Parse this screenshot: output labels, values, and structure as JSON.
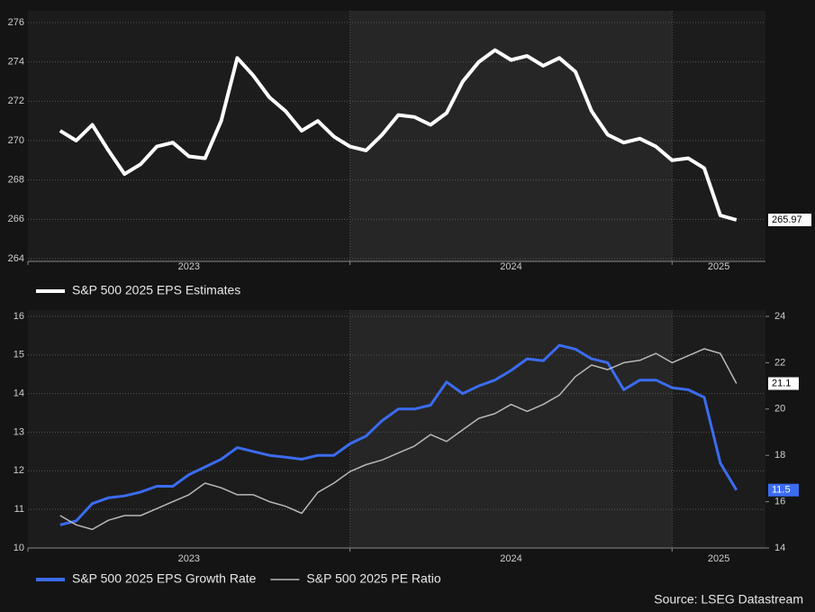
{
  "source": "Source: LSEG Datastream",
  "chart_data": [
    {
      "type": "line",
      "x": [
        2023.1,
        2023.15,
        2023.2,
        2023.25,
        2023.3,
        2023.35,
        2023.4,
        2023.45,
        2023.5,
        2023.55,
        2023.6,
        2023.65,
        2023.7,
        2023.75,
        2023.8,
        2023.85,
        2023.9,
        2023.95,
        2024.0,
        2024.05,
        2024.1,
        2024.15,
        2024.2,
        2024.25,
        2024.3,
        2024.35,
        2024.4,
        2024.45,
        2024.5,
        2024.55,
        2024.6,
        2024.65,
        2024.7,
        2024.75,
        2024.8,
        2024.85,
        2024.9,
        2024.95,
        2025.0,
        2025.05,
        2025.1,
        2025.15,
        2025.2
      ],
      "xlim": [
        2023,
        2025.29
      ],
      "xticks": [
        2023,
        2024,
        2025
      ],
      "ylim": [
        264,
        276
      ],
      "yticks": [
        264,
        266,
        268,
        270,
        272,
        274,
        276
      ],
      "grid": true,
      "series": [
        {
          "name": "S&P 500 2025 EPS Estimates",
          "color": "#ffffff",
          "values": [
            270.5,
            270.0,
            270.8,
            269.5,
            268.3,
            268.8,
            269.7,
            269.9,
            269.2,
            269.1,
            271.0,
            274.2,
            273.3,
            272.2,
            271.5,
            270.5,
            271.0,
            270.2,
            269.7,
            269.5,
            270.3,
            271.3,
            271.2,
            270.8,
            271.4,
            273.0,
            274.0,
            274.6,
            274.1,
            274.3,
            273.8,
            274.2,
            273.5,
            271.5,
            270.3,
            269.9,
            270.1,
            269.7,
            269.0,
            269.1,
            268.6,
            266.2,
            265.97
          ]
        }
      ]
    },
    {
      "type": "line",
      "x": [
        2023.1,
        2023.15,
        2023.2,
        2023.25,
        2023.3,
        2023.35,
        2023.4,
        2023.45,
        2023.5,
        2023.55,
        2023.6,
        2023.65,
        2023.7,
        2023.75,
        2023.8,
        2023.85,
        2023.9,
        2023.95,
        2024.0,
        2024.05,
        2024.1,
        2024.15,
        2024.2,
        2024.25,
        2024.3,
        2024.35,
        2024.4,
        2024.45,
        2024.5,
        2024.55,
        2024.6,
        2024.65,
        2024.7,
        2024.75,
        2024.8,
        2024.85,
        2024.9,
        2024.95,
        2025.0,
        2025.05,
        2025.1,
        2025.15,
        2025.2
      ],
      "xlim": [
        2023,
        2025.29
      ],
      "xticks": [
        2023,
        2024,
        2025
      ],
      "ylim": [
        10,
        16
      ],
      "yticks": [
        10,
        11,
        12,
        13,
        14,
        15,
        16
      ],
      "y2lim": [
        14,
        24
      ],
      "y2ticks": [
        14,
        16,
        18,
        20,
        22,
        24
      ],
      "grid": true,
      "series": [
        {
          "name": "S&P 500 2025 EPS Growth Rate",
          "color": "#3b6cf0",
          "values": [
            10.6,
            10.7,
            11.15,
            11.3,
            11.35,
            11.45,
            11.6,
            11.6,
            11.9,
            12.1,
            12.3,
            12.6,
            12.5,
            12.4,
            12.35,
            12.3,
            12.4,
            12.4,
            12.7,
            12.9,
            13.3,
            13.6,
            13.6,
            13.7,
            14.3,
            14.0,
            14.2,
            14.35,
            14.6,
            14.9,
            14.85,
            15.25,
            15.15,
            14.9,
            14.8,
            14.1,
            14.35,
            14.35,
            14.15,
            14.1,
            13.9,
            12.2,
            11.5
          ]
        },
        {
          "name": "S&P 500 2025 PE Ratio",
          "color": "#b8b8b8",
          "axis": "y2",
          "values": [
            15.4,
            15.0,
            14.8,
            15.2,
            15.4,
            15.4,
            15.7,
            16.0,
            16.3,
            16.8,
            16.6,
            16.3,
            16.3,
            16.0,
            15.8,
            15.5,
            16.4,
            16.8,
            17.3,
            17.6,
            17.8,
            18.1,
            18.4,
            18.9,
            18.6,
            19.1,
            19.6,
            19.8,
            20.2,
            19.9,
            20.2,
            20.6,
            21.4,
            21.9,
            21.7,
            22.0,
            22.1,
            22.4,
            22.0,
            22.3,
            22.6,
            22.4,
            21.1
          ]
        }
      ]
    }
  ]
}
